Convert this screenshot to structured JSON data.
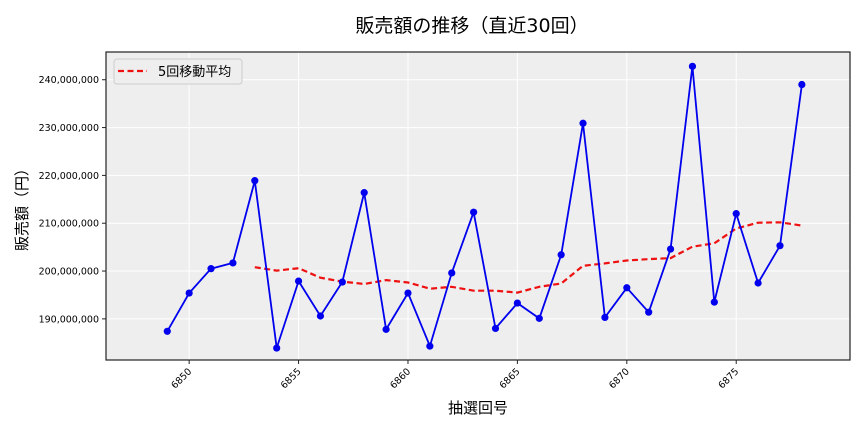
{
  "chart_data": {
    "type": "line",
    "title": "販売額の推移（直近30回）",
    "xlabel": "抽選回号",
    "ylabel": "販売額（円）",
    "x": [
      6849,
      6850,
      6851,
      6852,
      6853,
      6854,
      6855,
      6856,
      6857,
      6858,
      6859,
      6860,
      6861,
      6862,
      6863,
      6864,
      6865,
      6866,
      6867,
      6868,
      6869,
      6870,
      6871,
      6872,
      6873,
      6874,
      6875,
      6876,
      6877,
      6878
    ],
    "series": [
      {
        "name": "販売額",
        "style": "solid-with-markers",
        "color": "#0000ee",
        "values": [
          187400000,
          195400000,
          200500000,
          201700000,
          218900000,
          183900000,
          197900000,
          190600000,
          197700000,
          216400000,
          187800000,
          195400000,
          184300000,
          199600000,
          212300000,
          188000000,
          193300000,
          190100000,
          203400000,
          230900000,
          190300000,
          196500000,
          191400000,
          204600000,
          242800000,
          193500000,
          212000000,
          197500000,
          205300000,
          239000000
        ]
      },
      {
        "name": "5回移動平均",
        "style": "dashed",
        "color": "#ee1111",
        "x_start": 6853,
        "values": [
          200800000,
          200100000,
          200600000,
          198600000,
          197800000,
          197300000,
          198100000,
          197600000,
          196300000,
          196700000,
          195900000,
          195900000,
          195500000,
          196700000,
          197400000,
          201100000,
          201600000,
          202200000,
          202500000,
          202700000,
          205100000,
          205800000,
          208900000,
          210100000,
          210200000,
          209500000
        ]
      }
    ],
    "x_ticks": [
      6850,
      6855,
      6860,
      6865,
      6870,
      6875
    ],
    "y_ticks": [
      190000000,
      200000000,
      210000000,
      220000000,
      230000000,
      240000000
    ],
    "y_tick_labels": [
      "190,000,000",
      "200,000,000",
      "210,000,000",
      "220,000,000",
      "230,000,000",
      "240,000,000"
    ],
    "xlim": [
      6846.2,
      6880.2
    ],
    "ylim": [
      181400000,
      245800000
    ],
    "grid": true,
    "legend": {
      "position": "upper left",
      "entries": [
        "5回移動平均"
      ]
    },
    "colors": {
      "plot_background": "#eeeeee",
      "grid": "#ffffff",
      "frame": "#222222"
    }
  }
}
